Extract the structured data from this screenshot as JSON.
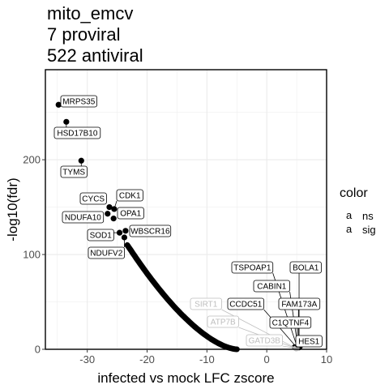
{
  "title_lines": [
    "mito_emcv",
    "7 proviral",
    "522 antiviral"
  ],
  "colors": {
    "sig": "#000000",
    "ns": "#bdbdbd",
    "grid": "#ebebeb",
    "panel_border": "#000000"
  },
  "chart_data": {
    "type": "scatter",
    "xlabel": "infected vs mock LFC zscore",
    "ylabel": "-log10(fdr)",
    "xlim": [
      -37,
      10
    ],
    "ylim": [
      0,
      295
    ],
    "x_ticks": [
      -30,
      -20,
      -10,
      0,
      10
    ],
    "y_ticks": [
      0,
      100,
      200
    ],
    "grid": true,
    "legend": {
      "title": "color",
      "placement": "right",
      "entries": [
        {
          "key": "ns",
          "symbol": "a"
        },
        {
          "key": "sig",
          "symbol": "a"
        }
      ]
    },
    "labeled_points": [
      {
        "name": "MRPS35",
        "x": -34.8,
        "y": 258,
        "group": "sig"
      },
      {
        "name": "HSD17B10",
        "x": -33.5,
        "y": 240,
        "group": "sig"
      },
      {
        "name": "TYMS",
        "x": -31.0,
        "y": 199,
        "group": "sig"
      },
      {
        "name": "CYCS",
        "x": -26.3,
        "y": 150,
        "group": "sig"
      },
      {
        "name": "CDK1",
        "x": -25.5,
        "y": 148,
        "group": "sig"
      },
      {
        "name": "NDUFA10",
        "x": -26.6,
        "y": 143,
        "group": "sig"
      },
      {
        "name": "OPA1",
        "x": -25.6,
        "y": 138,
        "group": "sig"
      },
      {
        "name": "WBSCR16",
        "x": -23.6,
        "y": 125,
        "group": "sig"
      },
      {
        "name": "SOD1",
        "x": -24.6,
        "y": 123,
        "group": "sig"
      },
      {
        "name": "NDUFV2",
        "x": -23.8,
        "y": 118,
        "group": "sig"
      },
      {
        "name": "TSPOAP1",
        "x": 5.1,
        "y": 2,
        "group": "sig"
      },
      {
        "name": "BOLA1",
        "x": 5.4,
        "y": 2,
        "group": "sig"
      },
      {
        "name": "CABIN1",
        "x": 5.2,
        "y": 2,
        "group": "sig"
      },
      {
        "name": "FAM173A",
        "x": 5.3,
        "y": 2,
        "group": "sig"
      },
      {
        "name": "CCDC51",
        "x": 5.0,
        "y": 2,
        "group": "sig"
      },
      {
        "name": "C1QTNF4",
        "x": 5.1,
        "y": 2,
        "group": "sig"
      },
      {
        "name": "HES1",
        "x": 5.2,
        "y": 2,
        "group": "sig"
      },
      {
        "name": "SIRT1",
        "x": 4.9,
        "y": 1,
        "group": "ns"
      },
      {
        "name": "ATP7B",
        "x": 4.9,
        "y": 1,
        "group": "ns"
      },
      {
        "name": "GATD3B",
        "x": 5.0,
        "y": 1,
        "group": "ns"
      }
    ],
    "curve": {
      "description": "dense band of significant points",
      "x_from": -23.3,
      "x_to": -5.0,
      "y_at_from": 110,
      "y_at_to": 0,
      "group": "sig"
    },
    "right_cluster": {
      "x_from": 4.6,
      "x_to": 5.6,
      "y_max": 3,
      "group": "sig"
    }
  }
}
